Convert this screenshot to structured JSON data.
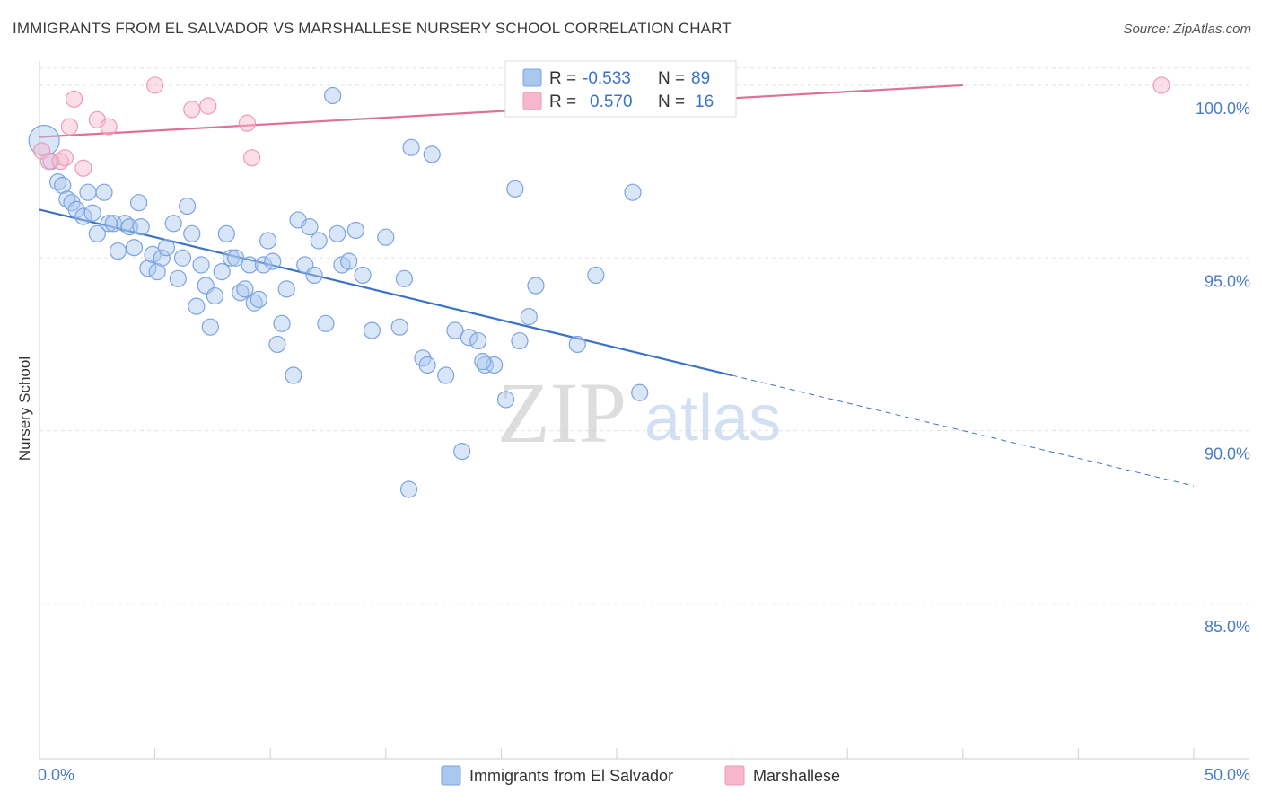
{
  "title": "IMMIGRANTS FROM EL SALVADOR VS MARSHALLESE NURSERY SCHOOL CORRELATION CHART",
  "source": "Source: ZipAtlas.com",
  "watermark": {
    "part1": "ZIP",
    "part2": "atlas"
  },
  "colors": {
    "blue": "#3b73c8",
    "blue_fill": "rgba(170,199,238,0.45)",
    "blue_stroke": "#7ba4e0",
    "pink": "#e07096",
    "pink_fill": "rgba(246,183,204,0.45)",
    "pink_stroke": "#ef9ab6",
    "grid": "#e3e3e3",
    "axis_text": "#4a7cc4"
  },
  "stats": [
    {
      "r_label": "R =",
      "r_value": "-0.533",
      "n_label": "N =",
      "n_value": "89",
      "color": "blue"
    },
    {
      "r_label": "R =",
      "r_value": "0.570",
      "n_label": "N =",
      "n_value": "16",
      "color": "pink"
    }
  ],
  "chart_data": {
    "type": "scatter",
    "title": "IMMIGRANTS FROM EL SALVADOR VS MARSHALLESE NURSERY SCHOOL CORRELATION CHART",
    "xlabel": "",
    "ylabel": "Nursery School",
    "xlim": [
      0,
      50
    ],
    "ylim": [
      80.5,
      100.7
    ],
    "x_tick_labels": [
      "0.0%",
      "50.0%"
    ],
    "y_ticks": [
      85,
      90,
      95,
      100
    ],
    "y_tick_labels": [
      "85.0%",
      "90.0%",
      "95.0%",
      "100.0%"
    ],
    "grid": true,
    "legend_position": "bottom-center",
    "series": [
      {
        "name": "Immigrants from El Salvador",
        "color": "blue",
        "r": -0.533,
        "n": 89,
        "trend": {
          "x0": 0,
          "y0": 96.4,
          "x1": 30,
          "y1": 91.6,
          "dash_to_x": 50,
          "dash_to_y": 88.4
        },
        "points": [
          [
            0.2,
            98.4
          ],
          [
            0.5,
            97.8
          ],
          [
            0.8,
            97.2
          ],
          [
            1.0,
            97.1
          ],
          [
            1.2,
            96.7
          ],
          [
            1.4,
            96.6
          ],
          [
            1.6,
            96.4
          ],
          [
            1.9,
            96.2
          ],
          [
            2.1,
            96.9
          ],
          [
            2.3,
            96.3
          ],
          [
            2.5,
            95.7
          ],
          [
            2.8,
            96.9
          ],
          [
            3.0,
            96.0
          ],
          [
            3.2,
            96.0
          ],
          [
            3.4,
            95.2
          ],
          [
            3.7,
            96.0
          ],
          [
            3.9,
            95.9
          ],
          [
            4.1,
            95.3
          ],
          [
            4.3,
            96.6
          ],
          [
            4.4,
            95.9
          ],
          [
            4.7,
            94.7
          ],
          [
            4.9,
            95.1
          ],
          [
            5.1,
            94.6
          ],
          [
            5.3,
            95.0
          ],
          [
            5.5,
            95.3
          ],
          [
            5.8,
            96.0
          ],
          [
            6.0,
            94.4
          ],
          [
            6.2,
            95.0
          ],
          [
            6.4,
            96.5
          ],
          [
            6.6,
            95.7
          ],
          [
            6.8,
            93.6
          ],
          [
            7.0,
            94.8
          ],
          [
            7.2,
            94.2
          ],
          [
            7.4,
            93.0
          ],
          [
            7.6,
            93.9
          ],
          [
            7.9,
            94.6
          ],
          [
            8.1,
            95.7
          ],
          [
            8.3,
            95.0
          ],
          [
            8.5,
            95.0
          ],
          [
            8.7,
            94.0
          ],
          [
            8.9,
            94.1
          ],
          [
            9.1,
            94.8
          ],
          [
            9.3,
            93.7
          ],
          [
            9.5,
            93.8
          ],
          [
            9.7,
            94.8
          ],
          [
            9.9,
            95.5
          ],
          [
            10.1,
            94.9
          ],
          [
            10.3,
            92.5
          ],
          [
            10.5,
            93.1
          ],
          [
            10.7,
            94.1
          ],
          [
            11.0,
            91.6
          ],
          [
            11.2,
            96.1
          ],
          [
            11.5,
            94.8
          ],
          [
            11.7,
            95.9
          ],
          [
            11.9,
            94.5
          ],
          [
            12.1,
            95.5
          ],
          [
            12.4,
            93.1
          ],
          [
            12.7,
            99.7
          ],
          [
            12.9,
            95.7
          ],
          [
            13.1,
            94.8
          ],
          [
            13.4,
            94.9
          ],
          [
            13.7,
            95.8
          ],
          [
            14.0,
            94.5
          ],
          [
            14.4,
            92.9
          ],
          [
            15.0,
            95.6
          ],
          [
            15.6,
            93.0
          ],
          [
            15.8,
            94.4
          ],
          [
            16.1,
            98.2
          ],
          [
            16.6,
            92.1
          ],
          [
            16.8,
            91.9
          ],
          [
            17.0,
            98.0
          ],
          [
            17.6,
            91.6
          ],
          [
            18.0,
            92.9
          ],
          [
            18.3,
            89.4
          ],
          [
            18.6,
            92.7
          ],
          [
            19.0,
            92.6
          ],
          [
            19.3,
            91.9
          ],
          [
            19.7,
            91.9
          ],
          [
            20.2,
            90.9
          ],
          [
            20.6,
            97.0
          ],
          [
            20.8,
            92.6
          ],
          [
            21.2,
            93.3
          ],
          [
            21.5,
            94.2
          ],
          [
            23.3,
            92.5
          ],
          [
            24.1,
            94.5
          ],
          [
            25.7,
            96.9
          ],
          [
            26.0,
            91.1
          ],
          [
            16.0,
            88.3
          ],
          [
            19.2,
            92.0
          ]
        ]
      },
      {
        "name": "Marshallese",
        "color": "pink",
        "r": 0.57,
        "n": 16,
        "trend": {
          "x0": 0,
          "y0": 98.5,
          "x1": 40,
          "y1": 100.0
        },
        "points": [
          [
            0.1,
            98.1
          ],
          [
            0.4,
            97.8
          ],
          [
            0.9,
            97.8
          ],
          [
            1.1,
            97.9
          ],
          [
            1.3,
            98.8
          ],
          [
            1.5,
            99.6
          ],
          [
            1.9,
            97.6
          ],
          [
            2.5,
            99.0
          ],
          [
            3.0,
            98.8
          ],
          [
            5.0,
            100.0
          ],
          [
            6.6,
            99.3
          ],
          [
            7.3,
            99.4
          ],
          [
            9.0,
            98.9
          ],
          [
            9.2,
            97.9
          ],
          [
            27.8,
            100.0
          ],
          [
            48.6,
            100.0
          ]
        ]
      }
    ]
  }
}
